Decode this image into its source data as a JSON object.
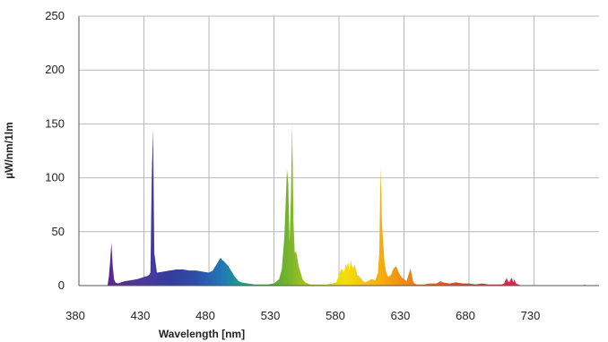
{
  "chart_data": {
    "type": "area",
    "title": "",
    "xlabel": "Wavelength [nm]",
    "ylabel": "µW/nm/1lm",
    "xlim": [
      380,
      780
    ],
    "ylim": [
      0,
      250
    ],
    "xticks": [
      380,
      430,
      480,
      530,
      580,
      630,
      680,
      730
    ],
    "yticks": [
      0,
      50,
      100,
      150,
      200,
      250
    ],
    "grid": true,
    "legend": "none",
    "fill_gradient": "visible spectrum",
    "series": [
      {
        "x": [
          380,
          402,
          403,
          404,
          405,
          406,
          407,
          408,
          410,
          415,
          420,
          425,
          430,
          433,
          434,
          435,
          436,
          437,
          438,
          440,
          445,
          450,
          455,
          460,
          465,
          470,
          475,
          480,
          483,
          485,
          487,
          489,
          490,
          492,
          495,
          498,
          500,
          503,
          505,
          510,
          515,
          520,
          525,
          530,
          534,
          536,
          538,
          540,
          541,
          542,
          543,
          544,
          545,
          546,
          547,
          548,
          549,
          550,
          552,
          554,
          556,
          558,
          560,
          565,
          570,
          575,
          578,
          580,
          582,
          584,
          585,
          586,
          587,
          588,
          589,
          590,
          591,
          592,
          594,
          596,
          598,
          600,
          602,
          605,
          608,
          610,
          611,
          612,
          613,
          614,
          615,
          616,
          617,
          618,
          620,
          622,
          624,
          625,
          626,
          627,
          628,
          630,
          632,
          634,
          635,
          636,
          637,
          638,
          640,
          645,
          650,
          655,
          658,
          660,
          665,
          670,
          675,
          680,
          685,
          690,
          695,
          700,
          705,
          707,
          708,
          709,
          710,
          711,
          712,
          713,
          714,
          715,
          716,
          718,
          720,
          730,
          740,
          750,
          760,
          768,
          769,
          770,
          772,
          780
        ],
        "y": [
          0,
          0,
          8,
          22,
          40,
          18,
          6,
          3,
          2,
          4,
          5,
          6,
          8,
          9,
          10,
          12,
          100,
          145,
          30,
          12,
          13,
          14,
          15,
          15,
          14,
          14,
          13,
          12,
          14,
          18,
          22,
          26,
          24,
          22,
          18,
          12,
          8,
          4,
          3,
          2,
          1,
          1,
          1,
          2,
          6,
          15,
          45,
          108,
          95,
          40,
          80,
          150,
          60,
          30,
          32,
          25,
          18,
          14,
          6,
          3,
          2,
          1,
          1,
          1,
          1,
          2,
          3,
          10,
          16,
          12,
          20,
          18,
          22,
          14,
          24,
          18,
          16,
          20,
          10,
          8,
          5,
          3,
          4,
          6,
          5,
          12,
          30,
          110,
          60,
          40,
          22,
          14,
          10,
          8,
          10,
          16,
          18,
          15,
          12,
          10,
          8,
          6,
          4,
          12,
          16,
          10,
          4,
          2,
          1,
          1,
          2,
          2,
          4,
          3,
          2,
          3,
          2,
          2,
          1,
          2,
          1,
          1,
          1,
          2,
          5,
          7,
          4,
          3,
          6,
          7,
          3,
          6,
          2,
          1,
          0,
          0,
          0,
          0,
          0,
          0,
          1,
          0,
          0,
          0
        ]
      }
    ]
  }
}
